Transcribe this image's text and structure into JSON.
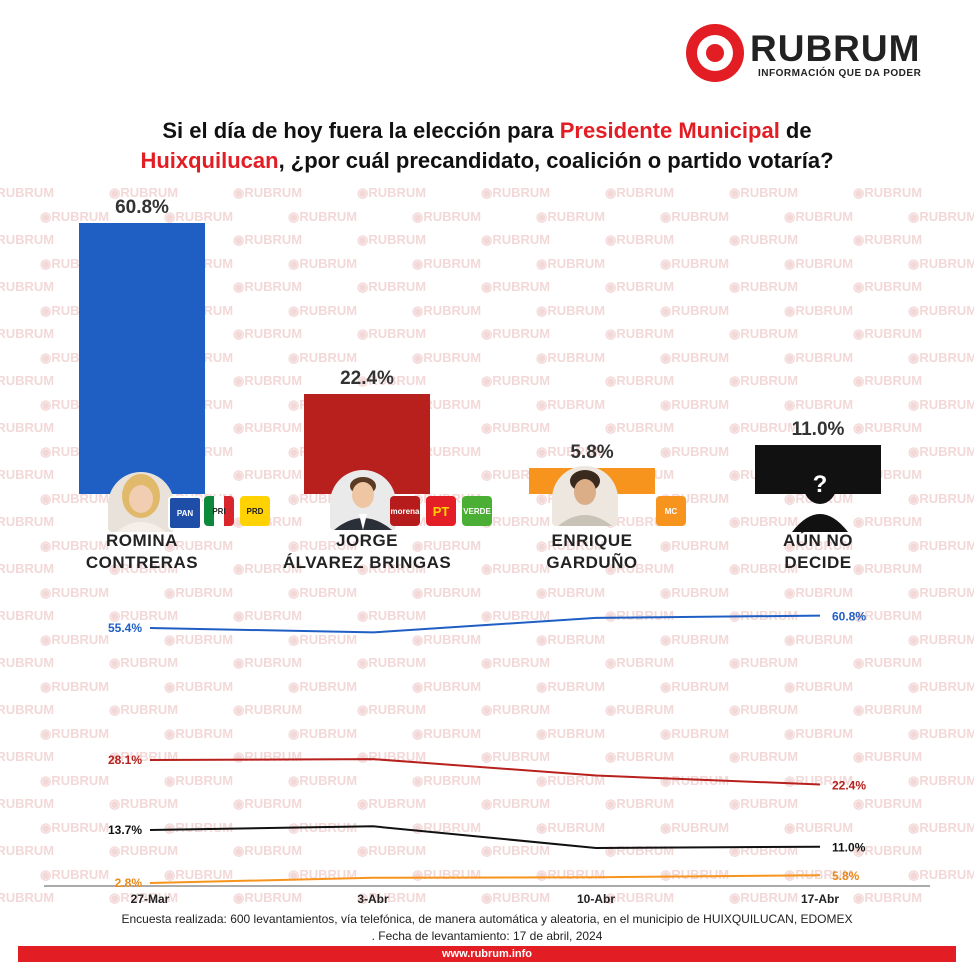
{
  "brand": {
    "name": "RUBRUM",
    "tagline": "INFORMACIÓN QUE DA PODER",
    "watermark": "RUBRUM",
    "url": "www.rubrum.info",
    "accent_color": "#e31d24"
  },
  "title": {
    "part1": "Si el día de hoy fuera la elección para ",
    "highlight1": "Presidente Municipal",
    "part2": " de",
    "highlight2": "Huixquilucan",
    "part3": ", ¿por cuál precandidato, coalición o partido votaría?"
  },
  "parties": {
    "pan": "PAN",
    "pri": "PRI",
    "prd": "PRD",
    "morena": "morena",
    "pt": "PT",
    "verde": "VERDE",
    "mc": "MC"
  },
  "chart_data": [
    {
      "type": "bar",
      "categories": [
        "ROMINA CONTRERAS",
        "JORGE ÁLVAREZ BRINGAS",
        "ENRIQUE GARDUÑO",
        "AÚN NO DECIDE"
      ],
      "name_lines": [
        [
          "ROMINA",
          "CONTRERAS"
        ],
        [
          "JORGE",
          "ÁLVAREZ BRINGAS"
        ],
        [
          "ENRIQUE",
          "GARDUÑO"
        ],
        [
          "AÚN NO",
          "DECIDE"
        ]
      ],
      "values": [
        60.8,
        22.4,
        5.8,
        11.0
      ],
      "labels": [
        "60.8%",
        "22.4%",
        "5.8%",
        "11.0%"
      ],
      "colors": [
        "#1f5fc4",
        "#b7201c",
        "#f7941d",
        "#111111"
      ],
      "ylim": [
        0,
        60.8
      ]
    },
    {
      "type": "line",
      "x": [
        "27-Mar",
        "3-Abr",
        "10-Abr",
        "17-Abr"
      ],
      "series": [
        {
          "color": "#1f5fc4",
          "values": [
            55.4,
            53.5,
            59.8,
            60.8
          ],
          "labels": [
            "55.4%",
            "",
            "",
            "60.8%"
          ]
        },
        {
          "color": "#b7201c",
          "values": [
            28.1,
            28.3,
            24.5,
            22.4
          ],
          "labels": [
            "28.1%",
            "",
            "",
            "22.4%"
          ]
        },
        {
          "color": "#111111",
          "values": [
            13.7,
            14.3,
            10.8,
            11.0
          ],
          "labels": [
            "13.7%",
            "",
            "",
            "11.0%"
          ]
        },
        {
          "color": "#f7941d",
          "values": [
            2.8,
            4.8,
            5.0,
            5.8
          ],
          "labels": [
            "2.8%",
            "",
            "",
            "5.8%"
          ]
        }
      ]
    }
  ],
  "footer": {
    "line1": "Encuesta realizada: 600 levantamientos, vía telefónica, de manera automática y aleatoria, en el municipio de HUIXQUILUCAN, EDOMEX",
    "line2": ". Fecha de levantamiento: 17 de abril, 2024"
  }
}
